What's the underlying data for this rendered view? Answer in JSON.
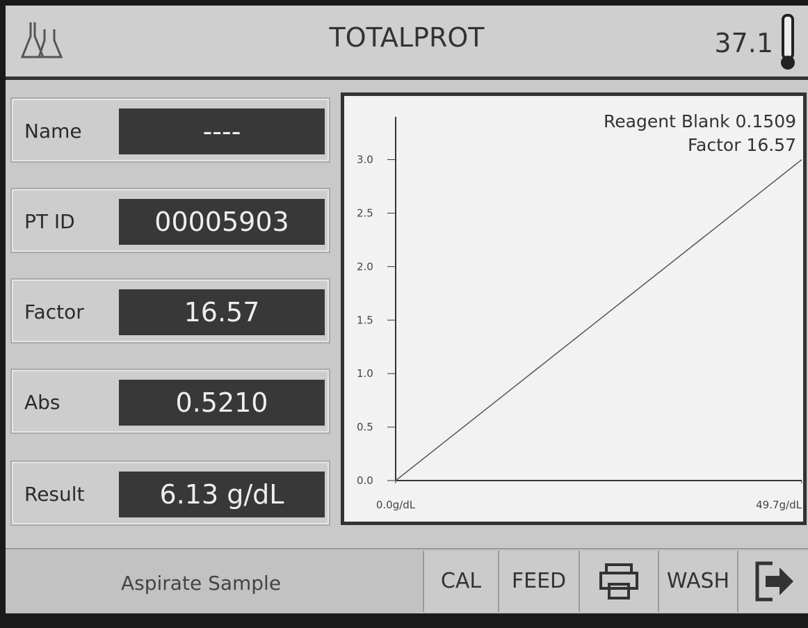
{
  "header": {
    "title": "TOTALPROT",
    "temperature": "37.1"
  },
  "fields": [
    {
      "label": "Name",
      "value": "----"
    },
    {
      "label": "PT ID",
      "value": "00005903"
    },
    {
      "label": "Factor",
      "value": "16.57"
    },
    {
      "label": "Abs",
      "value": "0.5210"
    },
    {
      "label": "Result",
      "value": "6.13 g/dL"
    }
  ],
  "chart_data": {
    "type": "line",
    "annotations": [
      "Reagent Blank 0.1509",
      "Factor 16.57"
    ],
    "x": [
      0,
      49.7
    ],
    "series": [
      {
        "color": "#555555",
        "values": [
          0,
          3.0
        ]
      }
    ],
    "xlim": [
      0,
      49.7
    ],
    "xticks": [
      {
        "value": 0,
        "label": "0.0g/dL"
      },
      {
        "value": 49.7,
        "label": "49.7g/dL"
      }
    ],
    "ylim": [
      0,
      3.4
    ],
    "yticks": [
      {
        "value": 0,
        "label": "0.0"
      },
      0.5,
      {
        "value": 1,
        "label": "1.0"
      },
      1.5,
      {
        "value": 2,
        "label": "2.0"
      },
      2.5,
      {
        "value": 3,
        "label": "3.0"
      }
    ]
  },
  "footer": {
    "status": "Aspirate Sample",
    "buttons": [
      "CAL",
      "FEED",
      "WASH"
    ]
  }
}
